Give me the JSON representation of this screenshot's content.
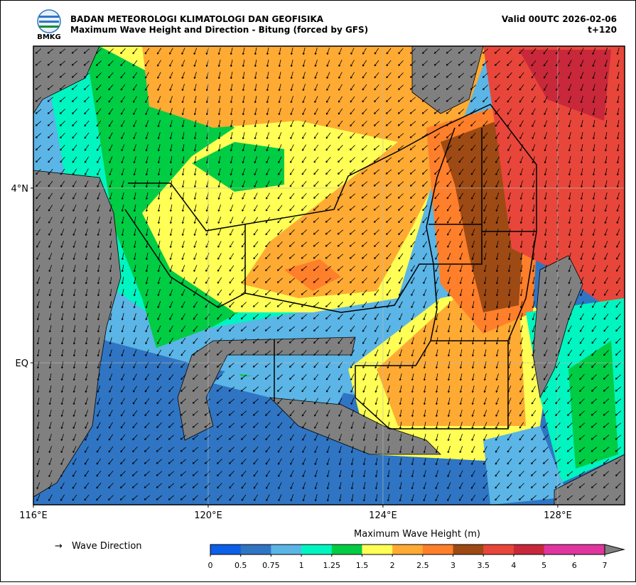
{
  "header": {
    "logo_text": "BMKG",
    "title": "BADAN METEOROLOGI KLIMATOLOGI DAN GEOFISIKA",
    "subtitle": "Maximum Wave Height and Direction - Bitung (forced by GFS)",
    "valid": "Valid 00UTC 2026-02-06",
    "lead": "t+120"
  },
  "map": {
    "lonlim": [
      116,
      129.53
    ],
    "latlim": [
      -3.25,
      7.25
    ],
    "lonticks": [
      {
        "value": 116,
        "label": "116°E"
      },
      {
        "value": 120,
        "label": "120°E"
      },
      {
        "value": 124,
        "label": "124°E"
      },
      {
        "value": 128,
        "label": "128°E"
      }
    ],
    "latticks": [
      {
        "value": 4,
        "label": "4°N"
      },
      {
        "value": 0,
        "label": "EQ"
      }
    ]
  },
  "legend": {
    "arrow_label": "Wave Direction"
  },
  "colorbar": {
    "title": "Maximum Wave Height (m)",
    "ticks": [
      0,
      0.5,
      0.75,
      1,
      1.25,
      1.5,
      2,
      2.5,
      3,
      3.5,
      4,
      5,
      6,
      7
    ],
    "colors": [
      "#0b5fe8",
      "#2f75c3",
      "#5bb5e6",
      "#00f5c0",
      "#00cc44",
      "#ffff55",
      "#ffaa33",
      "#ff7f2a",
      "#9e4a14",
      "#e8463a",
      "#c8283a",
      "#e0359e",
      "#e0359e"
    ],
    "extend_color": "#808080"
  }
}
